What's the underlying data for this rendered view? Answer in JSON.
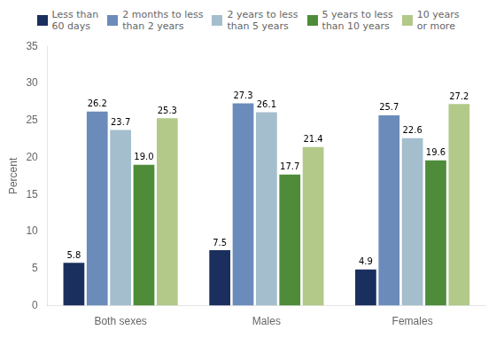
{
  "chart_data": {
    "type": "bar",
    "categories": [
      "Both sexes",
      "Males",
      "Females"
    ],
    "series": [
      {
        "name": "Less than\n60 days",
        "color": "#1b2f5e",
        "values": [
          5.8,
          7.5,
          4.9
        ],
        "value_labels": [
          "5.8",
          "7.5",
          "4.9"
        ]
      },
      {
        "name": "2 months to less\nthan 2 years",
        "color": "#6b8cba",
        "values": [
          26.2,
          27.3,
          25.7
        ],
        "value_labels": [
          "26.2",
          "27.3",
          "25.7"
        ]
      },
      {
        "name": "2 years to less\nthan 5 years",
        "color": "#a4becd",
        "values": [
          23.7,
          26.1,
          22.6
        ],
        "value_labels": [
          "23.7",
          "26.1",
          "22.6"
        ]
      },
      {
        "name": "5 years to less\nthan 10 years",
        "color": "#4e8c3a",
        "values": [
          19.0,
          17.7,
          19.6
        ],
        "value_labels": [
          "19.0",
          "17.7",
          "19.6"
        ]
      },
      {
        "name": "10 years\nor more",
        "color": "#b2c98a",
        "values": [
          25.3,
          21.4,
          27.2
        ],
        "value_labels": [
          "25.3",
          "21.4",
          "27.2"
        ]
      }
    ],
    "ylabel": "Percent",
    "ylim": [
      0,
      35
    ],
    "yticks": [
      0,
      5,
      10,
      15,
      20,
      25,
      30,
      35
    ],
    "grid": false,
    "legend": "top",
    "data_labels": true
  }
}
